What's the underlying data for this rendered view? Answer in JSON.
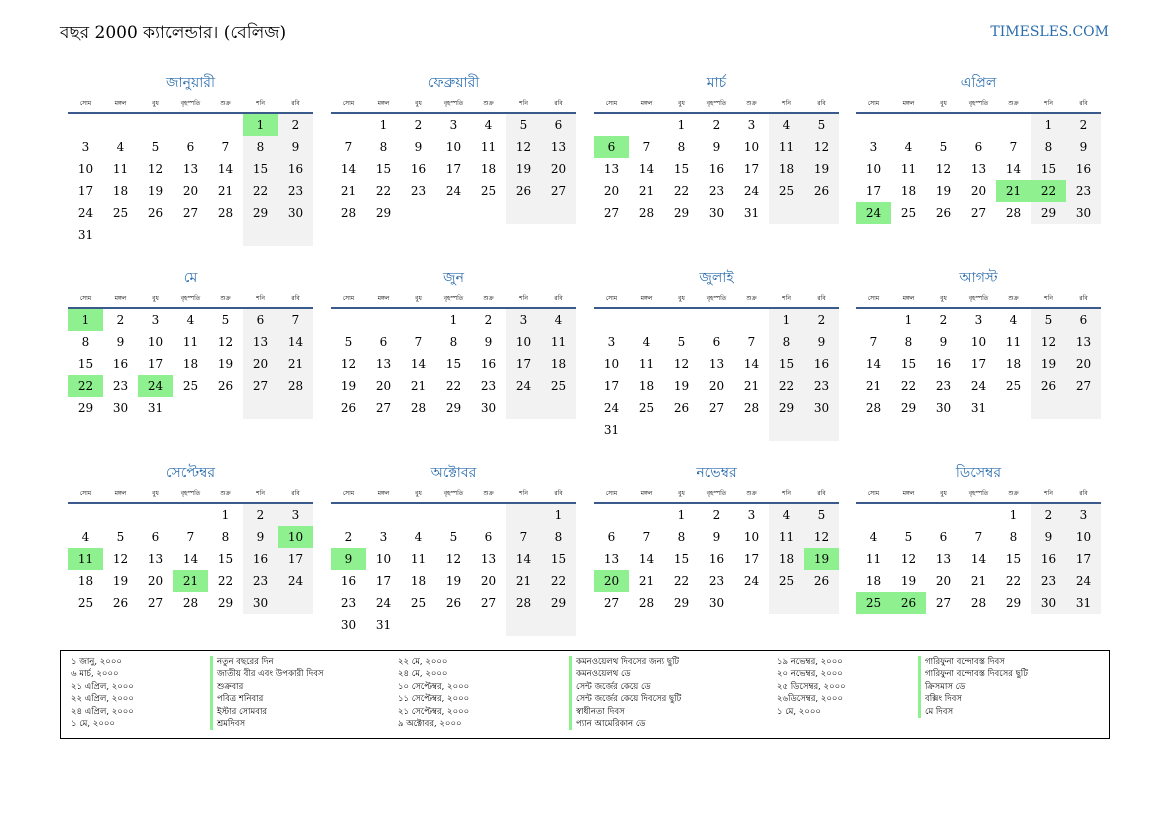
{
  "header": {
    "title": "বছর 2000 ক্যালেন্ডার। (বেলিজ)",
    "site": "TIMESLES.COM"
  },
  "weekdays": [
    "সোম",
    "মঙ্গল",
    "বুধ",
    "বৃহস্পতি",
    "শুক্র",
    "শনি",
    "রবি"
  ],
  "months": [
    {
      "name": "জানুয়ারী",
      "offset": 5,
      "days": 31,
      "holidays": [
        1
      ]
    },
    {
      "name": "ফেব্রুয়ারী",
      "offset": 1,
      "days": 29,
      "holidays": []
    },
    {
      "name": "মার্চ",
      "offset": 2,
      "days": 31,
      "holidays": [
        6
      ]
    },
    {
      "name": "এপ্রিল",
      "offset": 5,
      "days": 30,
      "holidays": [
        21,
        22,
        24
      ]
    },
    {
      "name": "মে",
      "offset": 0,
      "days": 31,
      "holidays": [
        1,
        22,
        24
      ]
    },
    {
      "name": "জুন",
      "offset": 3,
      "days": 30,
      "holidays": []
    },
    {
      "name": "জুলাই",
      "offset": 5,
      "days": 31,
      "holidays": []
    },
    {
      "name": "আগস্ট",
      "offset": 1,
      "days": 31,
      "holidays": []
    },
    {
      "name": "সেপ্টেম্বর",
      "offset": 4,
      "days": 30,
      "holidays": [
        10,
        11,
        21
      ]
    },
    {
      "name": "অক্টোবর",
      "offset": 6,
      "days": 31,
      "holidays": [
        9
      ]
    },
    {
      "name": "নভেম্বর",
      "offset": 2,
      "days": 30,
      "holidays": [
        19,
        20
      ]
    },
    {
      "name": "ডিসেম্বর",
      "offset": 4,
      "days": 31,
      "holidays": [
        25,
        26
      ]
    }
  ],
  "legend": [
    {
      "date": "১ জানু, ২০০০",
      "name": "নতুন বছরের দিন"
    },
    {
      "date": "৬ মার্চ, ২০০০",
      "name": "জাতীয় বীর এবং উপকারী দিবস"
    },
    {
      "date": "২১ এপ্রিল, ২০০০",
      "name": "শুক্রবার"
    },
    {
      "date": "২২ এপ্রিল, ২০০০",
      "name": "পবিত্র শনিবার"
    },
    {
      "date": "২৪ এপ্রিল, ২০০০",
      "name": "ইস্টার সোমবার"
    },
    {
      "date": "১ মে, ২০০০",
      "name": "শ্রমদিবস"
    },
    {
      "date": "২২ মে, ২০০০",
      "name": "কমনওয়েলথ দিবসের জন্য ছুটি"
    },
    {
      "date": "২৪ মে, ২০০০",
      "name": "কমনওয়েলথ ডে"
    },
    {
      "date": "১০ সেপ্টেম্বর, ২০০০",
      "name": "সেন্ট জর্জের কেয়ে ডে"
    },
    {
      "date": "১১ সেপ্টেম্বর, ২০০০",
      "name": "সেন্ট জর্জের কেয়ে দিবসের ছুটি"
    },
    {
      "date": "২১ সেপ্টেম্বর, ২০০০",
      "name": "স্বাধীনতা দিবস"
    },
    {
      "date": "৯ অক্টোবর, ২০০০",
      "name": "প্যান আমেরিকান ডে"
    },
    {
      "date": "১৯ নভেম্বর, ২০০০",
      "name": "গারিফুনা বন্দোবস্ত দিবস"
    },
    {
      "date": "২০ নভেম্বর, ২০০০",
      "name": "গারিফুনা বন্দোবস্ত দিবসের ছুটি"
    },
    {
      "date": "২৫ ডিসেম্বর, ২০০০",
      "name": "ক্রিসমাস ডে"
    },
    {
      "date": "২৬ডিসেম্বর, ২০০০",
      "name": "বক্সিং দিবস"
    },
    {
      "date": "১ মে, ২০০০",
      "name": "মে দিবস"
    }
  ],
  "colors": {
    "accent": "#2a6cad",
    "holiday": "#8ef08e",
    "weekend": "#f2f2f2",
    "rule": "#3a5a8c"
  }
}
